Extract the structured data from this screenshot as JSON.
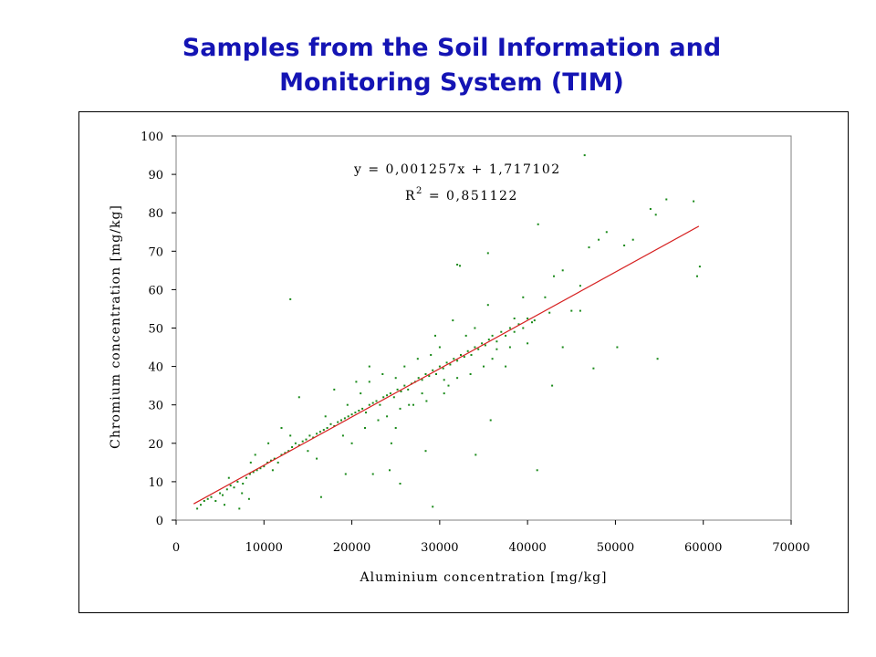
{
  "title": {
    "line1": "Samples from the Soil Information and",
    "line2": "Monitoring System (TIM)"
  },
  "colors": {
    "title": "#1414b4",
    "points": "#1a8a1a",
    "regression": "#d62020"
  },
  "chart_data": {
    "type": "scatter",
    "xlabel": "Aluminium concentration [mg/kg]",
    "ylabel": "Chromium concentration [mg/kg]",
    "xlim": [
      0,
      70000
    ],
    "ylim": [
      0,
      100
    ],
    "xticks": [
      0,
      10000,
      20000,
      30000,
      40000,
      50000,
      60000,
      70000
    ],
    "yticks": [
      0,
      10,
      20,
      30,
      40,
      50,
      60,
      70,
      80,
      90,
      100
    ],
    "grid": false,
    "equation": "y = 0,001257x + 1,717102",
    "r2_label": "R",
    "r2_sup": "2",
    "r2_value": " = 0,851122",
    "regression": {
      "slope": 0.001257,
      "intercept": 1.717102,
      "x_range": [
        2000,
        59500
      ]
    },
    "series": [
      {
        "points": [
          [
            46500,
            95
          ],
          [
            55800,
            83.5
          ],
          [
            58900,
            83
          ],
          [
            54000,
            81
          ],
          [
            54600,
            79.5
          ],
          [
            41200,
            77
          ],
          [
            49000,
            75
          ],
          [
            48100,
            73
          ],
          [
            52000,
            73
          ],
          [
            47000,
            71
          ],
          [
            51000,
            71.5
          ],
          [
            35500,
            69.5
          ],
          [
            32000,
            66.5
          ],
          [
            32300,
            66.2
          ],
          [
            59600,
            66
          ],
          [
            44000,
            65
          ],
          [
            43000,
            63.5
          ],
          [
            59300,
            63.5
          ],
          [
            46000,
            61
          ],
          [
            13000,
            57.5
          ],
          [
            42000,
            58
          ],
          [
            45000,
            54.5
          ],
          [
            46000,
            54.5
          ],
          [
            42500,
            54
          ],
          [
            38500,
            52.5
          ],
          [
            40800,
            52
          ],
          [
            44000,
            45
          ],
          [
            50200,
            45
          ],
          [
            54800,
            42
          ],
          [
            36500,
            44.5
          ],
          [
            47500,
            39.5
          ],
          [
            42800,
            35
          ],
          [
            30500,
            36.5
          ],
          [
            22000,
            36
          ],
          [
            41100,
            13
          ],
          [
            35800,
            26
          ],
          [
            25000,
            24
          ],
          [
            28400,
            18
          ],
          [
            34100,
            17
          ],
          [
            22400,
            12
          ],
          [
            24300,
            13
          ],
          [
            25500,
            9.5
          ],
          [
            19300,
            12
          ],
          [
            16500,
            6
          ],
          [
            29200,
            3.5
          ],
          [
            8300,
            5.5
          ],
          [
            2400,
            3
          ],
          [
            2800,
            4
          ],
          [
            3200,
            5
          ],
          [
            7200,
            3
          ],
          [
            3600,
            5.5
          ],
          [
            4000,
            6
          ],
          [
            4500,
            5
          ],
          [
            5000,
            7
          ],
          [
            5300,
            6.5
          ],
          [
            5800,
            8
          ],
          [
            6200,
            9
          ],
          [
            6600,
            8.5
          ],
          [
            7000,
            10
          ],
          [
            7600,
            9.5
          ],
          [
            8000,
            11
          ],
          [
            8400,
            12
          ],
          [
            8800,
            12.5
          ],
          [
            9200,
            13
          ],
          [
            9600,
            13.5
          ],
          [
            10000,
            14
          ],
          [
            10400,
            15
          ],
          [
            10800,
            15.5
          ],
          [
            11200,
            16
          ],
          [
            11600,
            15
          ],
          [
            12000,
            17
          ],
          [
            12400,
            17.5
          ],
          [
            12800,
            18
          ],
          [
            13200,
            19
          ],
          [
            13600,
            20
          ],
          [
            14000,
            19.5
          ],
          [
            14400,
            20.5
          ],
          [
            14800,
            21
          ],
          [
            15200,
            22
          ],
          [
            15600,
            21.5
          ],
          [
            16000,
            22.5
          ],
          [
            16400,
            23
          ],
          [
            16800,
            23.5
          ],
          [
            17200,
            24
          ],
          [
            17600,
            25
          ],
          [
            18000,
            24.5
          ],
          [
            18400,
            25.5
          ],
          [
            18800,
            26
          ],
          [
            19200,
            26.5
          ],
          [
            19600,
            27
          ],
          [
            20000,
            27.5
          ],
          [
            20400,
            28
          ],
          [
            20800,
            28.5
          ],
          [
            21200,
            29
          ],
          [
            21600,
            28
          ],
          [
            22000,
            30
          ],
          [
            22400,
            30.5
          ],
          [
            22800,
            31
          ],
          [
            23200,
            30
          ],
          [
            23600,
            32
          ],
          [
            24000,
            32.5
          ],
          [
            24400,
            33
          ],
          [
            24800,
            32
          ],
          [
            25200,
            34
          ],
          [
            25600,
            33.5
          ],
          [
            26000,
            35
          ],
          [
            26400,
            34
          ],
          [
            26800,
            35.5
          ],
          [
            27200,
            36
          ],
          [
            27600,
            37
          ],
          [
            28000,
            36.5
          ],
          [
            28400,
            38
          ],
          [
            28800,
            37.5
          ],
          [
            29200,
            39
          ],
          [
            29600,
            38
          ],
          [
            30000,
            40
          ],
          [
            30400,
            39.5
          ],
          [
            30800,
            41
          ],
          [
            31200,
            40.5
          ],
          [
            31600,
            42
          ],
          [
            32000,
            41.5
          ],
          [
            32400,
            43
          ],
          [
            32800,
            42.5
          ],
          [
            33200,
            44
          ],
          [
            33600,
            43
          ],
          [
            34000,
            45
          ],
          [
            34400,
            44.5
          ],
          [
            34800,
            46
          ],
          [
            35200,
            45.5
          ],
          [
            35600,
            47
          ],
          [
            36000,
            48
          ],
          [
            36500,
            46.5
          ],
          [
            37000,
            49
          ],
          [
            37500,
            48
          ],
          [
            38000,
            50
          ],
          [
            38500,
            49
          ],
          [
            39000,
            51
          ],
          [
            39500,
            50
          ],
          [
            40000,
            52.5
          ],
          [
            40500,
            51.5
          ],
          [
            6000,
            11
          ],
          [
            9000,
            17
          ],
          [
            11000,
            13
          ],
          [
            13000,
            22
          ],
          [
            15000,
            18
          ],
          [
            17000,
            27
          ],
          [
            19000,
            22
          ],
          [
            21000,
            33
          ],
          [
            23000,
            26
          ],
          [
            25000,
            37
          ],
          [
            27000,
            30
          ],
          [
            29000,
            43
          ],
          [
            31000,
            35
          ],
          [
            33000,
            48
          ],
          [
            35000,
            40
          ],
          [
            14000,
            32
          ],
          [
            18000,
            34
          ],
          [
            20000,
            20
          ],
          [
            22000,
            40
          ],
          [
            24000,
            27
          ],
          [
            26000,
            40
          ],
          [
            28000,
            33
          ],
          [
            30000,
            45
          ],
          [
            32000,
            37
          ],
          [
            34000,
            50
          ],
          [
            36000,
            42
          ],
          [
            38000,
            45
          ],
          [
            40000,
            46
          ],
          [
            12000,
            24
          ],
          [
            16000,
            16
          ],
          [
            20500,
            36
          ],
          [
            23500,
            38
          ],
          [
            26500,
            30
          ],
          [
            29500,
            48
          ],
          [
            31500,
            52
          ],
          [
            33500,
            38
          ],
          [
            35500,
            56
          ],
          [
            37500,
            40
          ],
          [
            39500,
            58
          ],
          [
            27500,
            42
          ],
          [
            24500,
            20
          ],
          [
            10500,
            20
          ],
          [
            8500,
            15
          ],
          [
            7500,
            7
          ],
          [
            5500,
            4
          ],
          [
            19500,
            30
          ],
          [
            21500,
            24
          ],
          [
            25500,
            29
          ],
          [
            28500,
            31
          ],
          [
            30500,
            33
          ]
        ]
      }
    ]
  }
}
